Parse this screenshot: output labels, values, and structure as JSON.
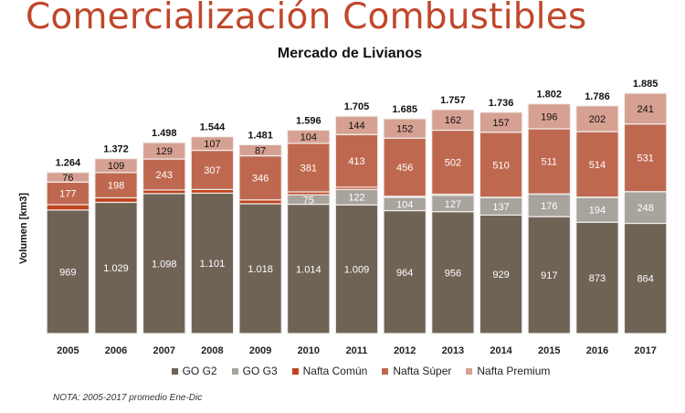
{
  "page": {
    "title": "Comercialización Combustibles",
    "note": "NOTA: 2005-2017 promedio Ene-Dic"
  },
  "chart_data": {
    "type": "bar",
    "stacked": true,
    "title": "Mercado de Livianos",
    "xlabel": "",
    "ylabel": "Volumen [km3]",
    "ylim": [
      0,
      2000
    ],
    "grid": false,
    "legend_position": "bottom",
    "categories": [
      "2005",
      "2006",
      "2007",
      "2008",
      "2009",
      "2010",
      "2011",
      "2012",
      "2013",
      "2014",
      "2015",
      "2016",
      "2017"
    ],
    "totals": [
      1264,
      1372,
      1498,
      1544,
      1481,
      1596,
      1705,
      1685,
      1757,
      1736,
      1802,
      1786,
      1885
    ],
    "total_labels": [
      "1.264",
      "1.372",
      "1.498",
      "1.544",
      "1.481",
      "1.596",
      "1.705",
      "1.685",
      "1.757",
      "1.736",
      "1.802",
      "1.786",
      "1.885"
    ],
    "series": [
      {
        "name": "GO G2",
        "color": "#6f6356",
        "label_color": "#ffffff",
        "values": [
          969,
          1029,
          1098,
          1101,
          1018,
          1014,
          1009,
          964,
          956,
          929,
          917,
          873,
          864
        ],
        "labels": [
          "969",
          "1.029",
          "1.098",
          "1.101",
          "1.018",
          "1.014",
          "1.009",
          "964",
          "956",
          "929",
          "917",
          "873",
          "864"
        ]
      },
      {
        "name": "GO G3",
        "color": "#a8a39d",
        "label_color": "#ffffff",
        "values": [
          0,
          0,
          0,
          0,
          0,
          75,
          122,
          104,
          127,
          137,
          176,
          194,
          248
        ],
        "labels": [
          "",
          "",
          "",
          "",
          "",
          "75",
          "122",
          "104",
          "127",
          "137",
          "176",
          "194",
          "248"
        ]
      },
      {
        "name": "Nafta Común",
        "color": "#c0431f",
        "label_color": "#ffffff",
        "values": [
          42,
          36,
          28,
          29,
          30,
          22,
          17,
          9,
          10,
          3,
          2,
          3,
          1
        ],
        "labels": [
          "",
          "",
          "",
          "",
          "",
          "",
          "",
          "",
          "",
          "",
          "",
          "",
          ""
        ]
      },
      {
        "name": "Nafta Súper",
        "color": "#bf6850",
        "label_color": "#ffffff",
        "values": [
          177,
          198,
          243,
          307,
          346,
          381,
          413,
          456,
          502,
          510,
          511,
          514,
          531
        ],
        "labels": [
          "177",
          "198",
          "243",
          "307",
          "346",
          "381",
          "413",
          "456",
          "502",
          "510",
          "511",
          "514",
          "531"
        ]
      },
      {
        "name": "Nafta Premium",
        "color": "#d6a192",
        "label_color": "#111111",
        "values": [
          76,
          109,
          129,
          107,
          87,
          104,
          144,
          152,
          162,
          157,
          196,
          202,
          241
        ],
        "labels": [
          "76",
          "109",
          "129",
          "107",
          "87",
          "104",
          "144",
          "152",
          "162",
          "157",
          "196",
          "202",
          "241"
        ]
      }
    ]
  }
}
